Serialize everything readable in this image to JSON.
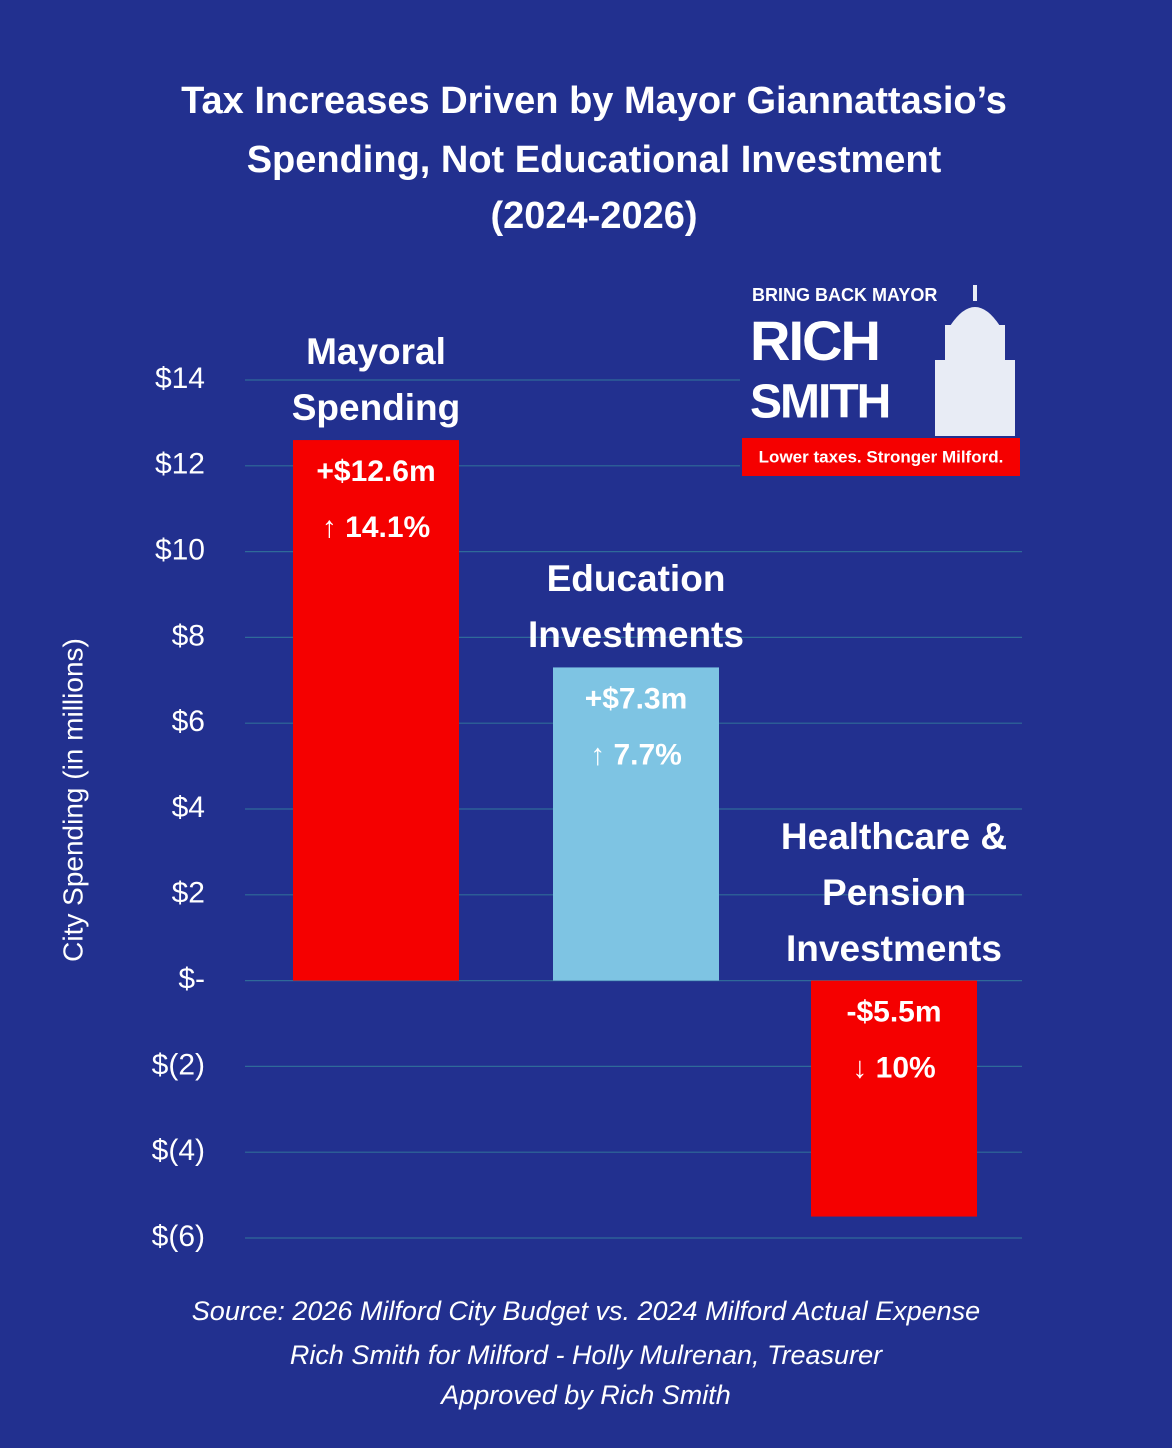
{
  "chart_data": {
    "type": "bar",
    "title": [
      "Tax Increases Driven by Mayor Giannattasio’s",
      "Spending, Not Educational Investment",
      "(2024-2026)"
    ],
    "y_label": "City Spending (in millions)",
    "categories": [
      "Mayoral Spending",
      "Education Investments",
      "Healthcare & Pension Investments"
    ],
    "values": [
      12.6,
      7.3,
      -5.5
    ],
    "value_labels": [
      "+$12.6m",
      "+$7.3m",
      "-$5.5m"
    ],
    "change_labels": [
      "↑ 14.1%",
      "↑ 7.7%",
      "↓ 10%"
    ],
    "colors": [
      "#f50000",
      "#7ec4e3",
      "#f50000"
    ],
    "ylim": [
      -6,
      14
    ],
    "yticks": [
      {
        "value": -6,
        "label": "$(6)"
      },
      {
        "value": -4,
        "label": "$(4)"
      },
      {
        "value": -2,
        "label": "$(2)"
      },
      {
        "value": 0,
        "label": "$-"
      },
      {
        "value": 2,
        "label": "$2"
      },
      {
        "value": 4,
        "label": "$4"
      },
      {
        "value": 6,
        "label": "$6"
      },
      {
        "value": 8,
        "label": "$8"
      },
      {
        "value": 10,
        "label": "$10"
      },
      {
        "value": 12,
        "label": "$12"
      },
      {
        "value": 14,
        "label": "$14"
      }
    ],
    "grid": true,
    "source": [
      "Source: 2026 Milford City Budget vs. 2024 Milford Actual Expense",
      "Rich Smith for Milford - Holly Mulrenan, Treasurer",
      "Approved by Rich Smith"
    ]
  },
  "logo": {
    "top": "BRING BACK MAYOR",
    "name1": "RICH",
    "name2": "SMITH",
    "tagline": "Lower taxes. Stronger Milford."
  }
}
